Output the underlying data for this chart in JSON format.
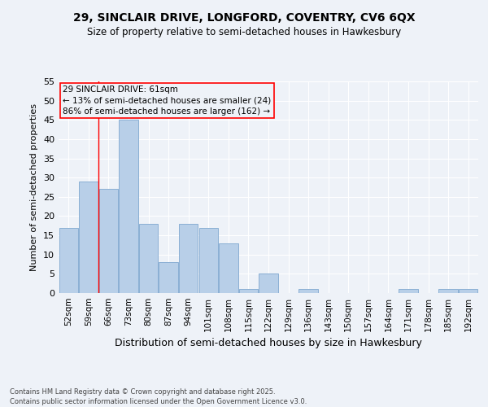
{
  "title_line1": "29, SINCLAIR DRIVE, LONGFORD, COVENTRY, CV6 6QX",
  "title_line2": "Size of property relative to semi-detached houses in Hawkesbury",
  "xlabel": "Distribution of semi-detached houses by size in Hawkesbury",
  "ylabel": "Number of semi-detached properties",
  "categories": [
    "52sqm",
    "59sqm",
    "66sqm",
    "73sqm",
    "80sqm",
    "87sqm",
    "94sqm",
    "101sqm",
    "108sqm",
    "115sqm",
    "122sqm",
    "129sqm",
    "136sqm",
    "143sqm",
    "150sqm",
    "157sqm",
    "164sqm",
    "171sqm",
    "178sqm",
    "185sqm",
    "192sqm"
  ],
  "values": [
    17,
    29,
    27,
    45,
    18,
    8,
    18,
    17,
    13,
    1,
    5,
    0,
    1,
    0,
    0,
    0,
    0,
    1,
    0,
    1,
    1
  ],
  "bar_color": "#b8cfe8",
  "bar_edge_color": "#8aafd4",
  "annotation_title": "29 SINCLAIR DRIVE: 61sqm",
  "annotation_line1": "← 13% of semi-detached houses are smaller (24)",
  "annotation_line2": "86% of semi-detached houses are larger (162) →",
  "ylim": [
    0,
    55
  ],
  "yticks": [
    0,
    5,
    10,
    15,
    20,
    25,
    30,
    35,
    40,
    45,
    50,
    55
  ],
  "footer_line1": "Contains HM Land Registry data © Crown copyright and database right 2025.",
  "footer_line2": "Contains public sector information licensed under the Open Government Licence v3.0.",
  "bg_color": "#eef2f8",
  "grid_color": "#ffffff"
}
